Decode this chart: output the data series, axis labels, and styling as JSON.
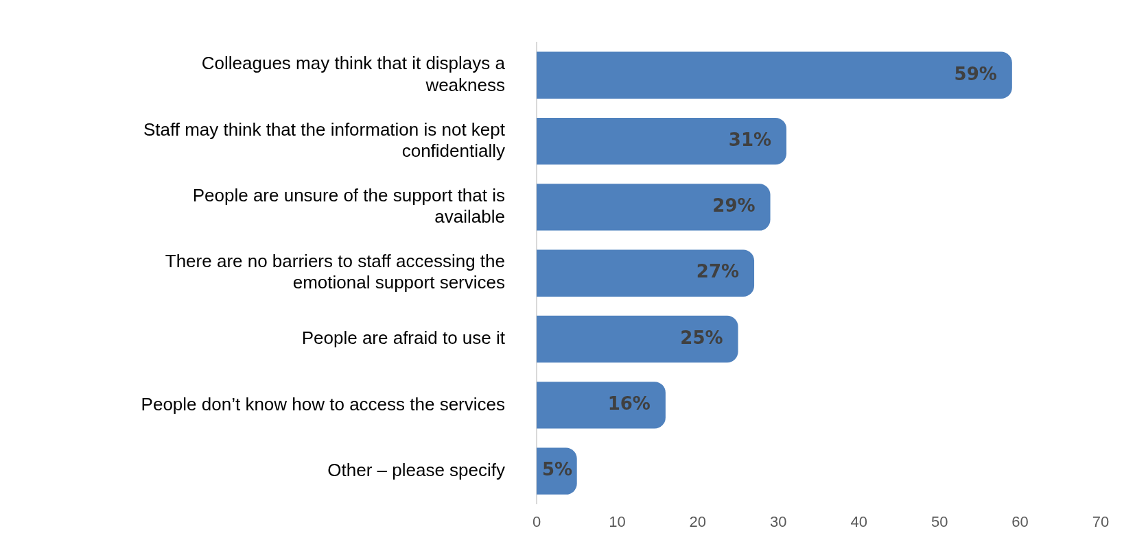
{
  "chart_data": {
    "type": "bar",
    "orientation": "horizontal",
    "categories": [
      "Colleagues may think that it displays a weakness",
      "Staff may think that the information is not kept confidentially",
      "People are unsure of the support that is available",
      "There are no barriers to staff accessing the emotional support services",
      "People are afraid to use it",
      "People don’t know how to access the services",
      "Other – please specify"
    ],
    "values": [
      59,
      31,
      29,
      27,
      25,
      16,
      5
    ],
    "value_labels": [
      "59%",
      "31%",
      "29%",
      "27%",
      "25%",
      "16%",
      "5%"
    ],
    "color": "#4f81bd",
    "xlim": [
      0,
      70
    ],
    "xticks": [
      0,
      10,
      20,
      30,
      40,
      50,
      60,
      70
    ],
    "grid": false,
    "legend": false
  }
}
